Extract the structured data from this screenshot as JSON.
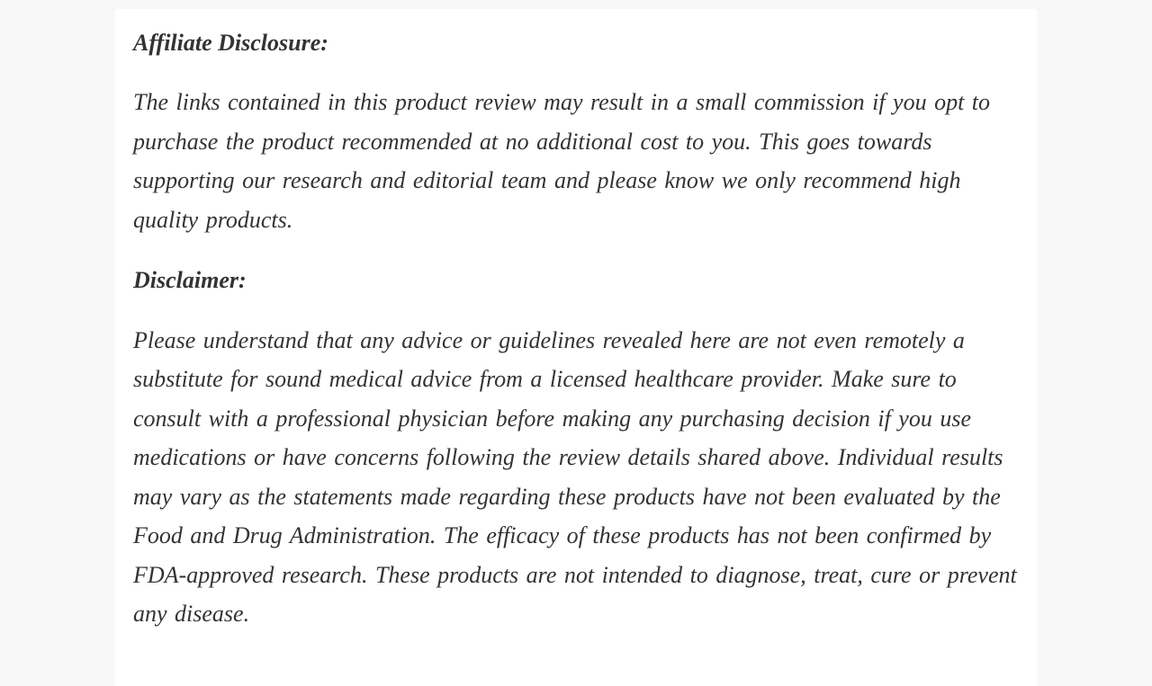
{
  "colors": {
    "page_background": "#f8f8f8",
    "content_background": "#ffffff",
    "text": "#333333"
  },
  "document": {
    "sections": [
      {
        "heading": "Affiliate Disclosure:",
        "body": "The links contained in this product review may result in a small commission if you opt to purchase the product recommended at no additional cost to you. This goes towards supporting our research and editorial team and please know we only recommend high quality products."
      },
      {
        "heading": "Disclaimer:",
        "body": "Please understand that any advice or guidelines revealed here are not even remotely a substitute for sound medical advice from a licensed healthcare provider. Make sure to consult with a professional physician before making any purchasing decision if you use medications or have concerns following the review details shared above. Individual results may vary as the statements made regarding these products have not been evaluated by the Food and Drug Administration. The efficacy of these products has not been confirmed by FDA-approved research. These products are not intended to diagnose, treat, cure or prevent any disease."
      }
    ]
  }
}
